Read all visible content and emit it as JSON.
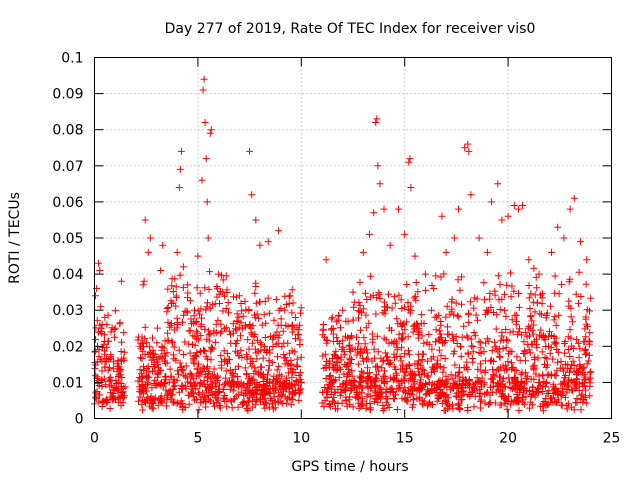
{
  "chart_data": {
    "type": "scatter",
    "title": "Day 277 of 2019, Rate Of TEC Index for receiver vis0",
    "xlabel": "GPS time / hours",
    "ylabel": "ROTI / TECUs",
    "xlim": [
      0,
      25
    ],
    "ylim": [
      0,
      0.1
    ],
    "x_ticks": [
      0,
      5,
      10,
      15,
      20,
      25
    ],
    "y_ticks": [
      0,
      0.01,
      0.02,
      0.03,
      0.04,
      0.05,
      0.06,
      0.07,
      0.08,
      0.09,
      0.1
    ],
    "grid": true,
    "marker": "plus",
    "color": "#ff0000",
    "data_gaps_hours": [
      [
        1.5,
        2.1
      ],
      [
        10.0,
        11.0
      ],
      [
        24.0,
        25.0
      ]
    ],
    "series": [
      {
        "name": "ROTI",
        "points": [
          [
            0.05,
            0.034
          ],
          [
            0.1,
            0.036
          ],
          [
            0.2,
            0.043
          ],
          [
            0.25,
            0.041
          ],
          [
            0.3,
            0.031
          ],
          [
            0.5,
            0.028
          ],
          [
            0.6,
            0.026
          ],
          [
            0.8,
            0.024
          ],
          [
            1.0,
            0.025
          ],
          [
            1.3,
            0.038
          ],
          [
            2.2,
            0.02
          ],
          [
            2.35,
            0.037
          ],
          [
            2.4,
            0.038
          ],
          [
            2.45,
            0.055
          ],
          [
            2.6,
            0.046
          ],
          [
            2.7,
            0.05
          ],
          [
            3.2,
            0.041
          ],
          [
            3.3,
            0.048
          ],
          [
            3.8,
            0.032
          ],
          [
            4.0,
            0.046
          ],
          [
            4.1,
            0.064
          ],
          [
            4.15,
            0.069
          ],
          [
            4.2,
            0.074
          ],
          [
            4.3,
            0.042
          ],
          [
            4.5,
            0.037
          ],
          [
            5.0,
            0.045
          ],
          [
            5.2,
            0.066
          ],
          [
            5.25,
            0.091
          ],
          [
            5.3,
            0.094
          ],
          [
            5.35,
            0.082
          ],
          [
            5.4,
            0.072
          ],
          [
            5.45,
            0.06
          ],
          [
            5.5,
            0.05
          ],
          [
            5.6,
            0.079
          ],
          [
            5.65,
            0.08
          ],
          [
            6.0,
            0.04
          ],
          [
            6.2,
            0.035
          ],
          [
            7.5,
            0.074
          ],
          [
            7.6,
            0.062
          ],
          [
            7.8,
            0.055
          ],
          [
            8.0,
            0.048
          ],
          [
            8.4,
            0.049
          ],
          [
            8.9,
            0.052
          ],
          [
            9.2,
            0.03
          ],
          [
            9.6,
            0.032
          ],
          [
            11.2,
            0.044
          ],
          [
            11.5,
            0.028
          ],
          [
            12.0,
            0.03
          ],
          [
            12.5,
            0.035
          ],
          [
            13.0,
            0.046
          ],
          [
            13.3,
            0.051
          ],
          [
            13.5,
            0.057
          ],
          [
            13.6,
            0.082
          ],
          [
            13.65,
            0.083
          ],
          [
            13.7,
            0.07
          ],
          [
            13.8,
            0.065
          ],
          [
            14.0,
            0.058
          ],
          [
            14.3,
            0.048
          ],
          [
            14.7,
            0.058
          ],
          [
            15.0,
            0.051
          ],
          [
            15.2,
            0.071
          ],
          [
            15.25,
            0.072
          ],
          [
            15.3,
            0.064
          ],
          [
            15.5,
            0.045
          ],
          [
            16.0,
            0.04
          ],
          [
            16.4,
            0.036
          ],
          [
            16.8,
            0.056
          ],
          [
            17.0,
            0.046
          ],
          [
            17.4,
            0.05
          ],
          [
            17.6,
            0.058
          ],
          [
            17.9,
            0.075
          ],
          [
            18.05,
            0.076
          ],
          [
            18.1,
            0.074
          ],
          [
            18.2,
            0.062
          ],
          [
            18.6,
            0.05
          ],
          [
            19.0,
            0.046
          ],
          [
            19.2,
            0.06
          ],
          [
            19.5,
            0.065
          ],
          [
            19.7,
            0.055
          ],
          [
            20.0,
            0.056
          ],
          [
            20.3,
            0.059
          ],
          [
            20.5,
            0.058
          ],
          [
            20.7,
            0.059
          ],
          [
            21.0,
            0.044
          ],
          [
            21.5,
            0.04
          ],
          [
            22.1,
            0.046
          ],
          [
            22.4,
            0.053
          ],
          [
            22.7,
            0.05
          ],
          [
            23.0,
            0.058
          ],
          [
            23.2,
            0.061
          ],
          [
            23.5,
            0.049
          ],
          [
            23.8,
            0.044
          ]
        ]
      }
    ]
  }
}
